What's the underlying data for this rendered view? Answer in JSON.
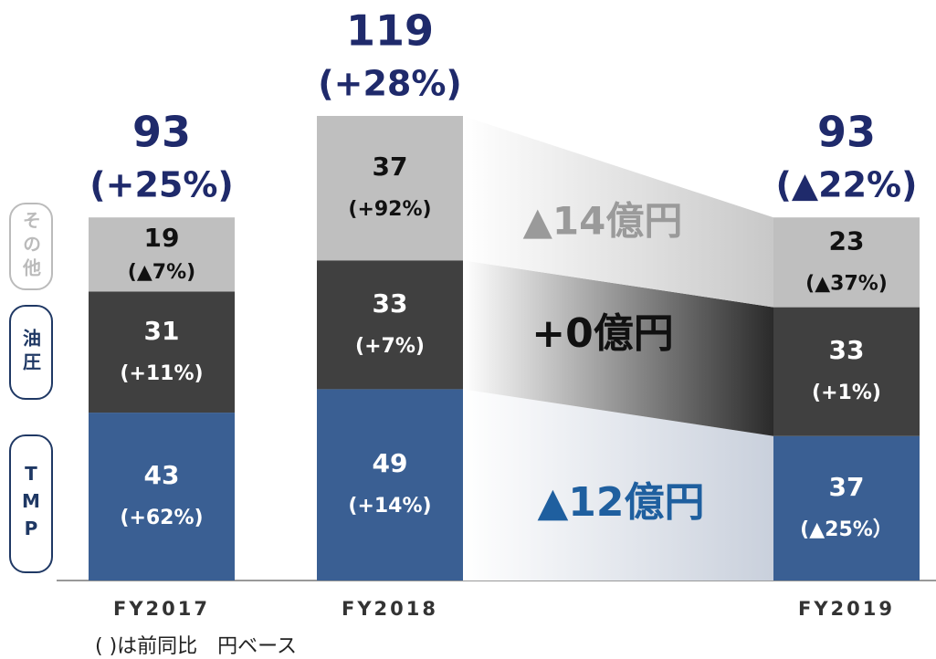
{
  "chart_data": {
    "type": "bar",
    "stacked": true,
    "categories": [
      "FY2017",
      "FY2018",
      "FY2019"
    ],
    "series": [
      {
        "name": "TMP",
        "color": "#3a5f93",
        "values": [
          43,
          49,
          37
        ],
        "changes": [
          "(+62%)",
          "(+14%)",
          "(▲25%）"
        ]
      },
      {
        "name": "油圧",
        "color": "#404040",
        "values": [
          31,
          33,
          33
        ],
        "changes": [
          "(+11%)",
          "(+7%)",
          "(+1%)"
        ]
      },
      {
        "name": "その他",
        "color": "#bfbfbf",
        "values": [
          19,
          37,
          23
        ],
        "changes": [
          "(▲7%)",
          "(+92%)",
          "(▲37%)"
        ]
      }
    ],
    "totals": [
      93,
      119,
      93
    ],
    "total_changes": [
      "(+25%)",
      "(+28%)",
      "(▲22%)"
    ],
    "annotations": [
      "▲12億円",
      "+0億円",
      "▲14億円"
    ],
    "ylim": [
      0,
      119
    ],
    "footnote": "( )は前同比　円ベース"
  }
}
